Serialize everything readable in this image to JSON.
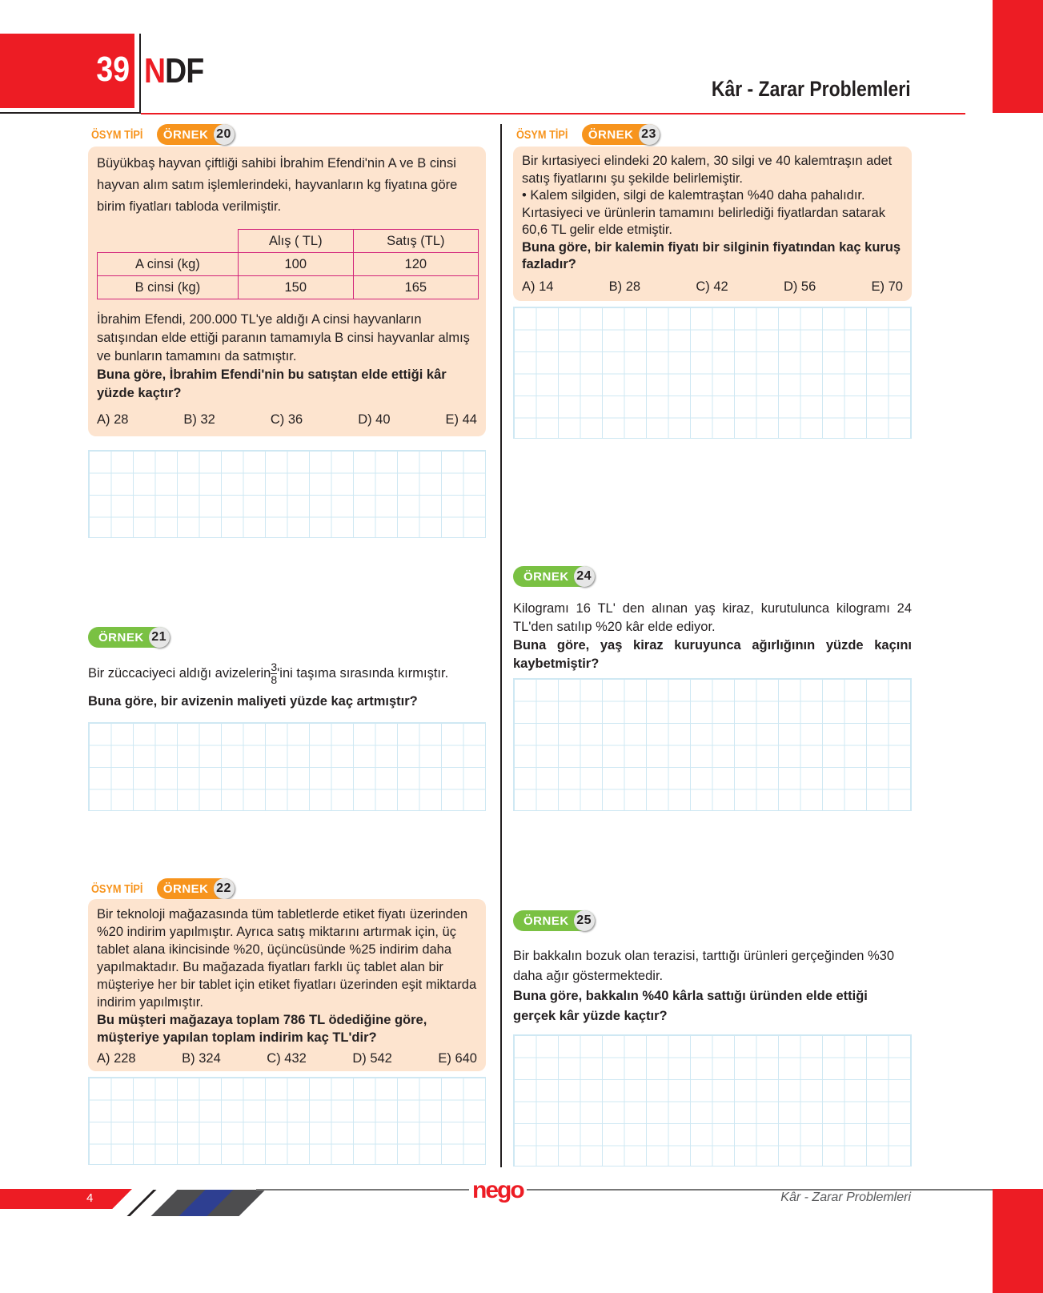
{
  "header": {
    "page_number": "39",
    "brand_n": "N",
    "brand_rest": "DF",
    "title": "Kâr - Zarar Problemleri"
  },
  "colors": {
    "red": "#ed1c24",
    "orange": "#f7941d",
    "green": "#7ac143",
    "box": "#fde4cf"
  },
  "q20": {
    "tag": "ÖSYM TİPİ",
    "badge": "ÖRNEK",
    "num": "20",
    "intro": "Büyükbaş hayvan çiftliği sahibi İbrahim Efendi'nin A ve B cinsi hayvan alım satım işlemlerindeki, hayvanların kg fiyatına göre birim fiyatları tabloda verilmiştir.",
    "table": {
      "headers": [
        "Alış ( TL)",
        "Satış (TL)"
      ],
      "rows": [
        {
          "label": "A cinsi (kg)",
          "buy": "100",
          "sell": "120"
        },
        {
          "label": "B cinsi (kg)",
          "buy": "150",
          "sell": "165"
        }
      ]
    },
    "body": "İbrahim Efendi, 200.000 TL'ye aldığı A cinsi hayvanların satışından elde ettiği paranın tamamıyla B cinsi hayvanlar almış ve bunların tamamını da satmıştır.",
    "question": "Buna göre, İbrahim Efendi'nin bu satıştan elde ettiği kâr yüzde kaçtır?",
    "options": [
      "A) 28",
      "B) 32",
      "C) 36",
      "D) 40",
      "E) 44"
    ]
  },
  "q21": {
    "badge": "ÖRNEK",
    "num": "21",
    "text_before": "Bir züccaciyeci aldığı avizelerin",
    "frac_num": "3",
    "frac_den": "8",
    "text_after": "'ini taşıma sırasında kırmıştır.",
    "question": "Buna göre, bir avizenin maliyeti yüzde kaç artmıştır?"
  },
  "q22": {
    "tag": "ÖSYM TİPİ",
    "badge": "ÖRNEK",
    "num": "22",
    "body": "Bir teknoloji mağazasında tüm tabletlerde etiket fiyatı üzerinden %20 indirim yapılmıştır. Ayrıca satış miktarını artırmak için, üç tablet alana ikincisinde %20, üçüncüsünde %25 indirim daha yapılmaktadır. Bu mağazada fiyatları farklı üç tablet alan bir müşteriye her bir tablet için etiket fiyatları üzerinden eşit miktarda indirim yapılmıştır.",
    "question": "Bu müşteri mağazaya toplam 786 TL ödediğine göre, müşteriye yapılan toplam indirim kaç TL'dir?",
    "options": [
      "A) 228",
      "B) 324",
      "C) 432",
      "D) 542",
      "E) 640"
    ]
  },
  "q23": {
    "tag": "ÖSYM TİPİ",
    "badge": "ÖRNEK",
    "num": "23",
    "body": "Bir kırtasiyeci elindeki 20 kalem, 30 silgi ve 40 kalemtraşın adet satış fiyatlarını şu şekilde belirlemiştir.",
    "bullet": "• Kalem silgiden, silgi de kalemtraştan %40 daha pahalıdır.",
    "body2": "Kırtasiyeci ve ürünlerin tamamını belirlediği fiyatlardan satarak 60,6 TL gelir elde etmiştir.",
    "question": "Buna göre, bir kalemin fiyatı bir silginin fiyatından kaç kuruş fazladır?",
    "options": [
      "A) 14",
      "B) 28",
      "C) 42",
      "D) 56",
      "E) 70"
    ]
  },
  "q24": {
    "badge": "ÖRNEK",
    "num": "24",
    "body": "Kilogramı 16 TL' den alınan yaş kiraz, kurutulunca kilogramı 24 TL'den satılıp %20 kâr elde ediyor.",
    "question": "Buna göre, yaş kiraz kuruyunca ağırlığının yüzde kaçını kaybetmiştir?"
  },
  "q25": {
    "badge": "ÖRNEK",
    "num": "25",
    "body": "Bir bakkalın bozuk olan terazisi, tarttığı ürünleri gerçeğinden %30 daha ağır göstermektedir.",
    "question": "Buna göre, bakkalın %40 kârla sattığı üründen elde ettiği gerçek kâr yüzde kaçtır?"
  },
  "footer": {
    "page": "4",
    "logo": "nego",
    "title": "Kâr - Zarar Problemleri"
  }
}
